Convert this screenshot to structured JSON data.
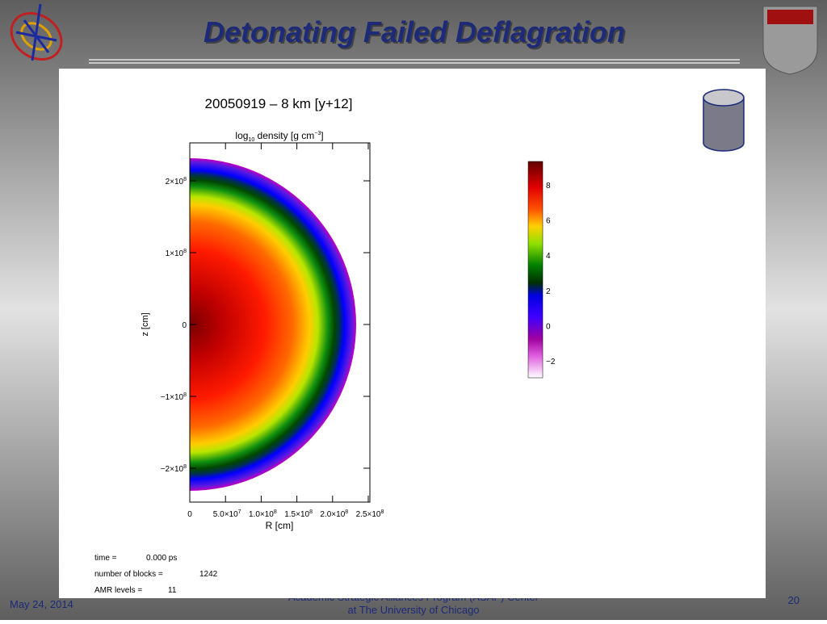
{
  "slide": {
    "title": "Detonating Failed Deflagration",
    "footer": {
      "date": "May 24, 2014",
      "center_line1": "Academic Strategic Alliances Program (ASAP) Center",
      "center_line2": "at The University of Chicago",
      "page": "20"
    }
  },
  "plot": {
    "title": "20050919 – 8 km [y+12]",
    "top_label": {
      "a": "log",
      "sub": "10",
      "b": " density [g cm",
      "sup": "−3",
      "c": "]"
    },
    "x_label": "R [cm]",
    "y_label": "z [cm]",
    "y_ticks": [
      {
        "base": "2×10",
        "exp": "8"
      },
      {
        "base": "1×10",
        "exp": "8"
      },
      {
        "base": "0",
        "exp": ""
      },
      {
        "base": "−1×10",
        "exp": "8"
      },
      {
        "base": "−2×10",
        "exp": "8"
      }
    ],
    "x_ticks": [
      {
        "base": "0",
        "exp": ""
      },
      {
        "base": "5.0×10",
        "exp": "7"
      },
      {
        "base": "1.0×10",
        "exp": "8"
      },
      {
        "base": "1.5×10",
        "exp": "8"
      },
      {
        "base": "2.0×10",
        "exp": "8"
      },
      {
        "base": "2.5×10",
        "exp": "8"
      }
    ],
    "colorbar_ticks": [
      "8",
      "6",
      "4",
      "2",
      "0",
      "−2"
    ],
    "info": [
      [
        "time =",
        "0.000 ps"
      ],
      [
        "number of blocks =",
        "1242"
      ],
      [
        "AMR levels =",
        "11"
      ]
    ]
  }
}
